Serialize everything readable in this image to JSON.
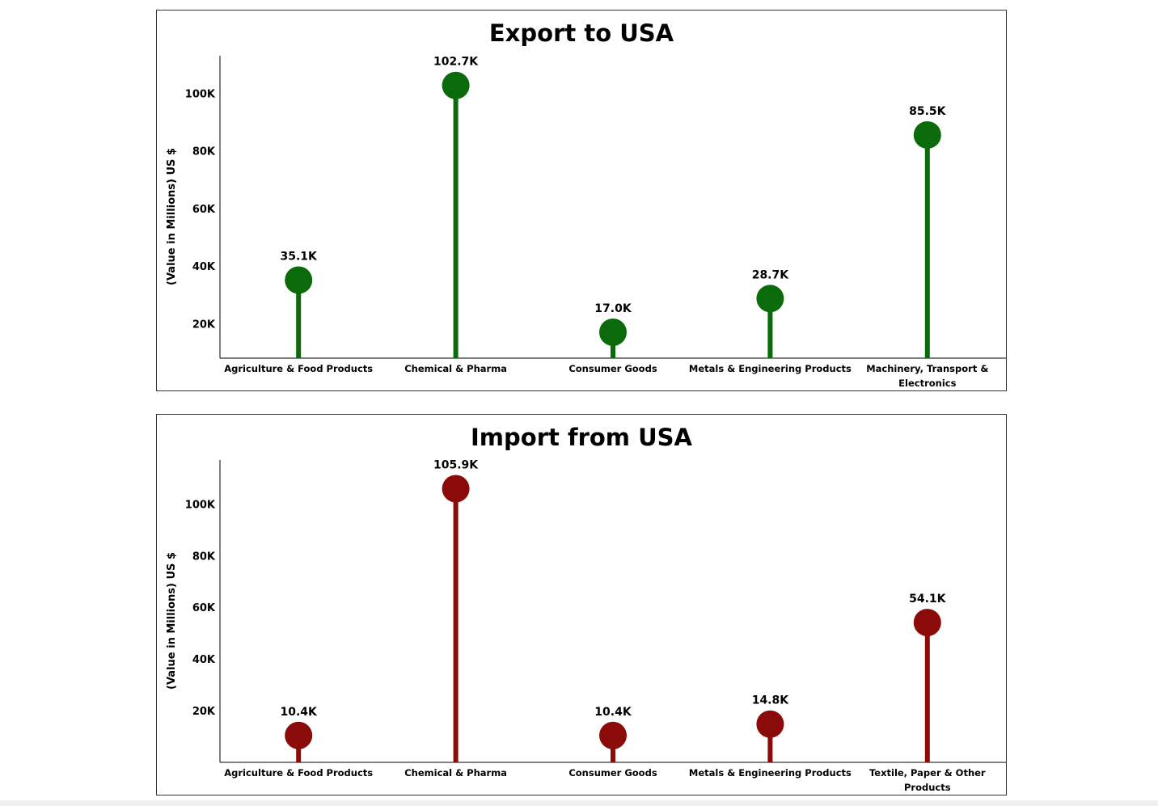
{
  "chart_data": [
    {
      "type": "lollipop",
      "title": "Export to USA",
      "ylabel": "(Value in Millions) US $",
      "ylim": [
        8000,
        113000
      ],
      "yticks": [
        20000,
        40000,
        60000,
        80000,
        100000
      ],
      "ytick_labels": [
        "20K",
        "40K",
        "60K",
        "80K",
        "100K"
      ],
      "categories": [
        [
          "Agriculture & Food Products"
        ],
        [
          "Chemical & Pharma"
        ],
        [
          "Consumer Goods"
        ],
        [
          "Metals & Engineering Products"
        ],
        [
          "Machinery, Transport &",
          "Electronics"
        ]
      ],
      "values": [
        35100,
        102700,
        17000,
        28700,
        85500
      ],
      "data_labels": [
        "35.1K",
        "102.7K",
        "17.0K",
        "28.7K",
        "85.5K"
      ],
      "color": "#0b6b0b",
      "grid": false
    },
    {
      "type": "lollipop",
      "title": "Import from USA",
      "ylabel": "(Value in Millions) US $",
      "ylim": [
        0,
        117000
      ],
      "yticks": [
        20000,
        40000,
        60000,
        80000,
        100000
      ],
      "ytick_labels": [
        "20K",
        "40K",
        "60K",
        "80K",
        "100K"
      ],
      "categories": [
        [
          "Agriculture & Food Products"
        ],
        [
          "Chemical & Pharma"
        ],
        [
          "Consumer Goods"
        ],
        [
          "Metals & Engineering Products"
        ],
        [
          "Textile, Paper & Other",
          "Products"
        ]
      ],
      "values": [
        10400,
        105900,
        10400,
        14800,
        54100
      ],
      "data_labels": [
        "10.4K",
        "105.9K",
        "10.4K",
        "14.8K",
        "54.1K"
      ],
      "color": "#8b0a0a",
      "grid": false
    }
  ]
}
